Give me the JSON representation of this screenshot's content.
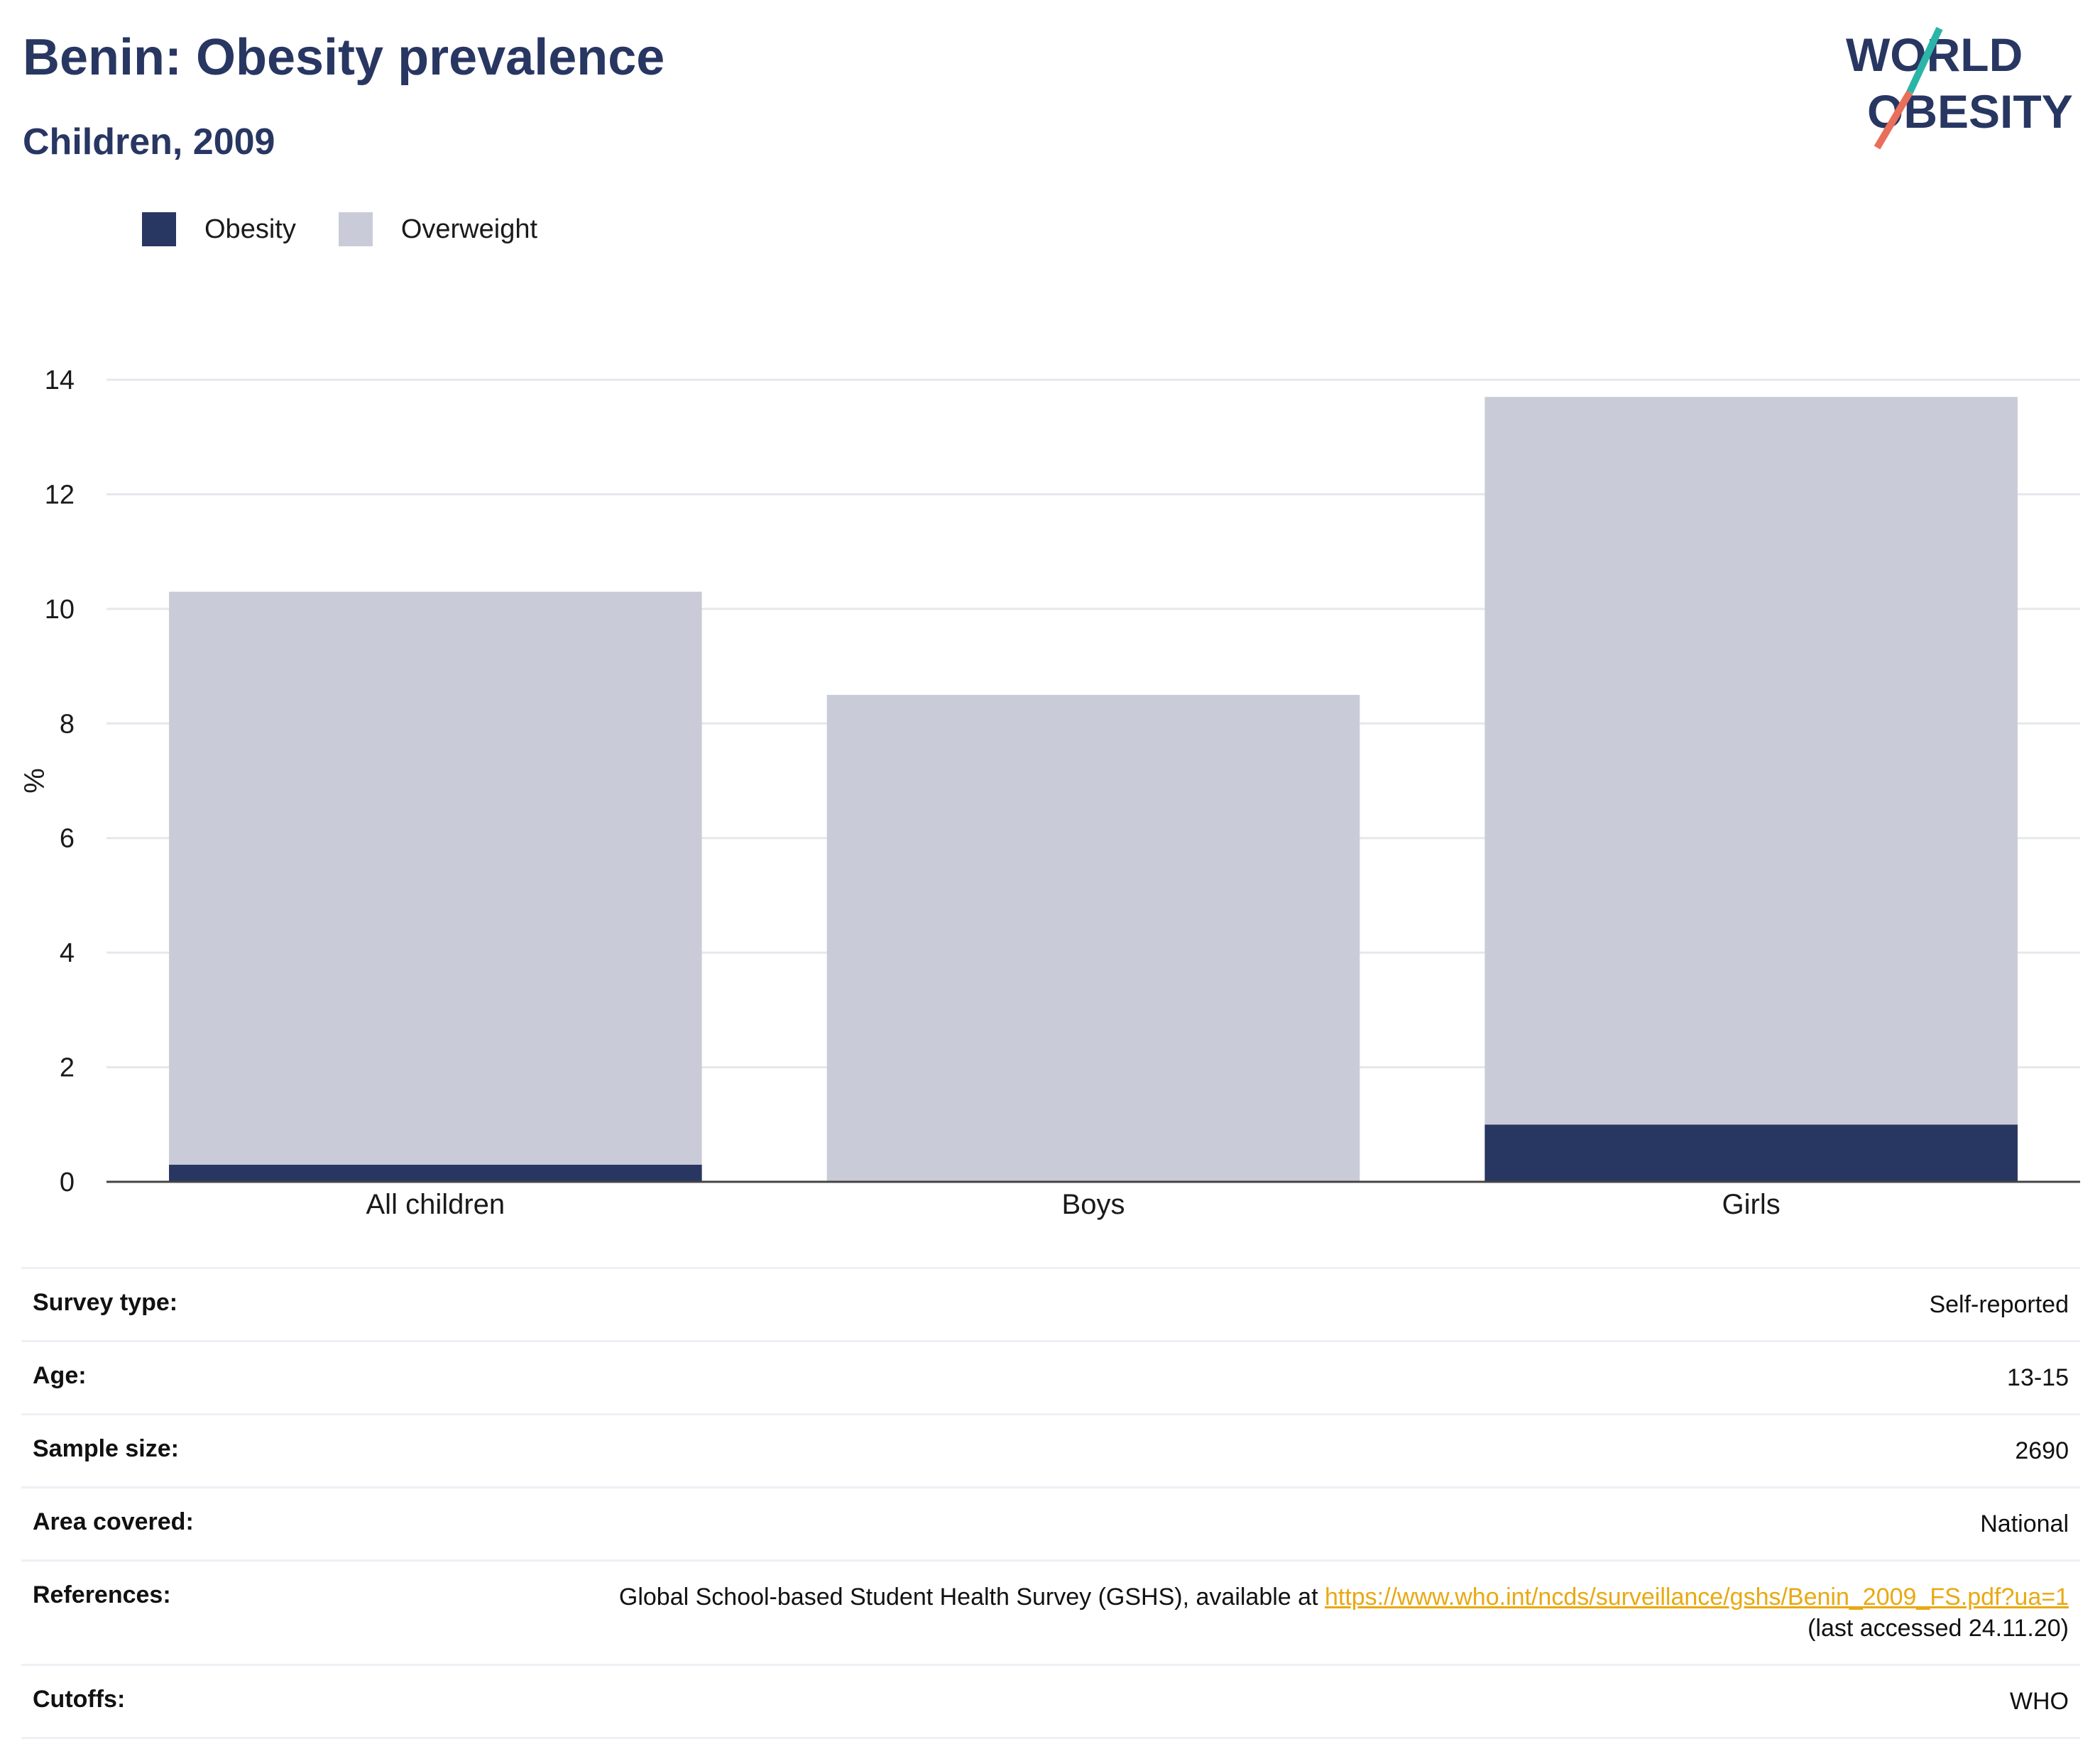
{
  "header": {
    "title": "Benin: Obesity prevalence",
    "subtitle": "Children, 2009"
  },
  "logo": {
    "line1": "WORLD",
    "line2": "OBESITY"
  },
  "legend": [
    {
      "label": "Obesity",
      "color": "#283662"
    },
    {
      "label": "Overweight",
      "color": "#c9ccd8"
    }
  ],
  "chart_data": {
    "type": "bar",
    "stacked": true,
    "categories": [
      "All children",
      "Boys",
      "Girls"
    ],
    "series": [
      {
        "name": "Obesity",
        "color": "#283662",
        "values": [
          0.3,
          0.0,
          1.0
        ]
      },
      {
        "name": "Overweight",
        "color": "#c9ccd8",
        "values": [
          10.0,
          8.5,
          12.7
        ]
      }
    ],
    "ylabel": "%",
    "ylim": [
      0,
      14
    ],
    "yticks": [
      0,
      2,
      4,
      6,
      8,
      10,
      12,
      14
    ],
    "grid": true,
    "legend_position": "top-left"
  },
  "info": {
    "rows": [
      {
        "key": "Survey type:",
        "value": "Self-reported"
      },
      {
        "key": "Age:",
        "value": "13-15"
      },
      {
        "key": "Sample size:",
        "value": "2690"
      },
      {
        "key": "Area covered:",
        "value": "National"
      }
    ],
    "references": {
      "key": "References:",
      "text_before": "Global School-based Student Health Survey (GSHS), available at ",
      "link": "https://www.who.int/ncds/surveillance/gshs/Benin_2009_FS.pdf?ua=1",
      "text_after": "(last accessed 24.11.20)"
    },
    "cutoffs": {
      "key": "Cutoffs:",
      "value": "WHO"
    }
  }
}
